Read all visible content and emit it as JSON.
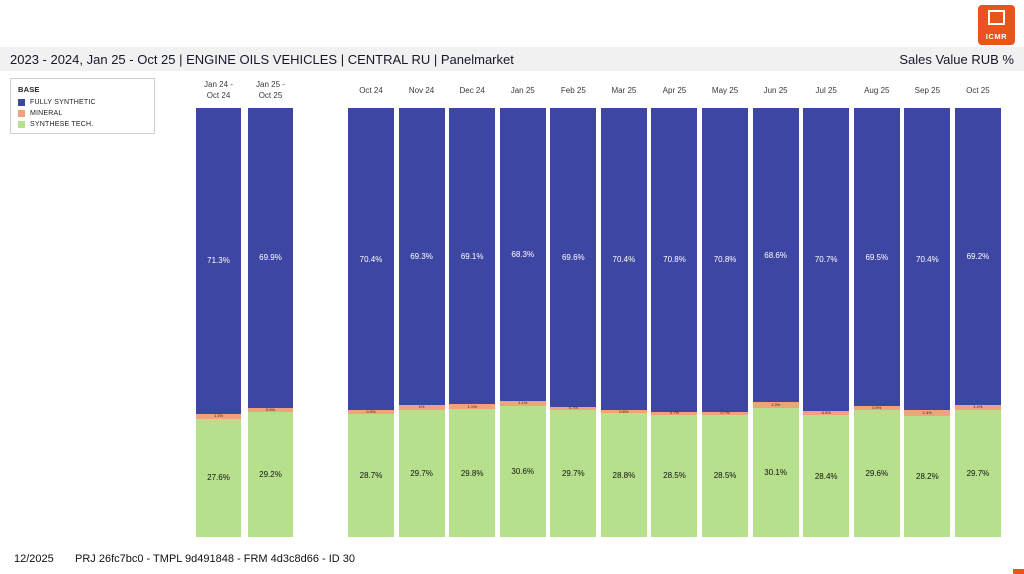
{
  "page": {
    "title_bar": {
      "title": "2023 - 2024, Jan 25 - Oct 25 | ENGINE OILS VEHICLES | CENTRAL RU | Panelmarket",
      "metric": "Sales Value RUB %"
    },
    "logo_text": "ICMR",
    "footer": {
      "date": "12/2025",
      "reference": "PRJ 26fc7bc0 - TMPL 9d491848 - FRM 4d3c8d66 - ID 30"
    }
  },
  "legend": {
    "title": "BASE",
    "items": [
      {
        "label": "FULLY SYNTHETIC",
        "color": "#3e46a3"
      },
      {
        "label": "MINERAL",
        "color": "#f2a17e"
      },
      {
        "label": "SYNTHESE TECH.",
        "color": "#b7e08d"
      }
    ]
  },
  "chart_data": {
    "type": "bar",
    "stacked": true,
    "orientation": "vertical",
    "unit": "%",
    "ylim": [
      0,
      100
    ],
    "grid": false,
    "legend_position": "top-left",
    "title": "2023 - 2024, Jan 25 - Oct 25 | ENGINE OILS VEHICLES | CENTRAL RU | Panelmarket",
    "value_axis_label": "Sales Value RUB %",
    "series_colors": {
      "FULLY SYNTHETIC": "#3e46a3",
      "MINERAL": "#f2a17e",
      "SYNTHESE TECH.": "#b7e08d"
    },
    "stack_order_top_to_bottom": [
      "FULLY SYNTHETIC",
      "MINERAL",
      "SYNTHESE TECH."
    ],
    "groups": [
      {
        "name": "period-totals",
        "categories": [
          "Jan 24 -\nOct 24",
          "Jan 25 -\nOct 25"
        ],
        "series": [
          {
            "name": "FULLY SYNTHETIC",
            "values": [
              71.3,
              69.9
            ]
          },
          {
            "name": "MINERAL",
            "values": [
              1.1,
              0.9
            ]
          },
          {
            "name": "SYNTHESE TECH.",
            "values": [
              27.6,
              29.2
            ]
          }
        ]
      },
      {
        "name": "monthly",
        "categories": [
          "Oct 24",
          "Nov 24",
          "Dec 24",
          "Jan 25",
          "Feb 25",
          "Mar 25",
          "Apr 25",
          "May 25",
          "Jun 25",
          "Jul 25",
          "Aug 25",
          "Sep 25",
          "Oct 25"
        ],
        "series": [
          {
            "name": "FULLY SYNTHETIC",
            "values": [
              70.4,
              69.3,
              69.1,
              68.3,
              69.6,
              70.4,
              70.8,
              70.8,
              68.6,
              70.7,
              69.5,
              70.4,
              69.2
            ]
          },
          {
            "name": "MINERAL",
            "values": [
              0.9,
              1.0,
              1.1,
              1.1,
              0.7,
              0.8,
              0.7,
              0.7,
              1.3,
              0.9,
              0.9,
              1.4,
              1.1
            ]
          },
          {
            "name": "SYNTHESE TECH.",
            "values": [
              28.7,
              29.7,
              29.8,
              30.6,
              29.7,
              28.8,
              28.5,
              28.5,
              30.1,
              28.4,
              29.6,
              28.2,
              29.7
            ]
          }
        ]
      }
    ]
  }
}
